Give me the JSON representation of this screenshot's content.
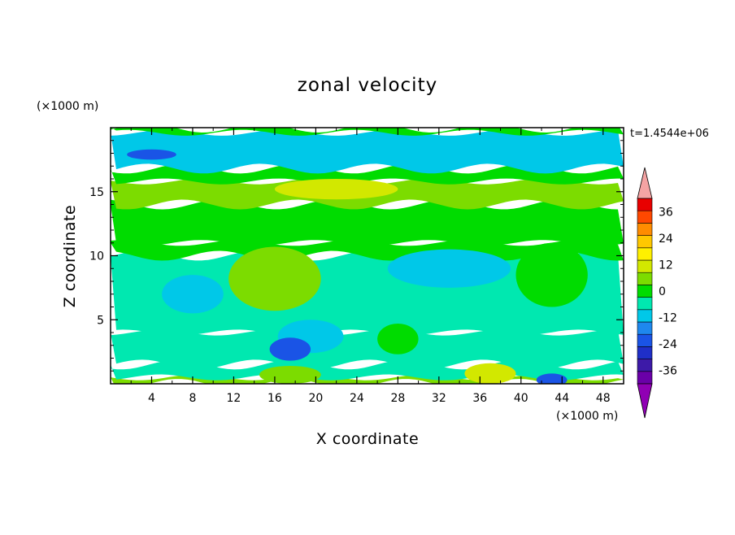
{
  "chart_data": {
    "type": "heatmap",
    "title": "zonal velocity",
    "xlabel": "X coordinate",
    "ylabel": "Z coordinate",
    "x_unit": "(×1000 m)",
    "y_unit": "(×1000 m)",
    "time_label": "t=1.4544e+06",
    "xlim": [
      0,
      50
    ],
    "ylim": [
      0,
      20
    ],
    "x_ticks": [
      4,
      8,
      12,
      16,
      20,
      24,
      28,
      32,
      36,
      40,
      44,
      48
    ],
    "x_tick_labels": [
      "4",
      "8",
      "12",
      "16",
      "20",
      "24",
      "28",
      "32",
      "36",
      "40",
      "44",
      "48"
    ],
    "y_ticks": [
      5,
      10,
      15
    ],
    "y_tick_labels": [
      "5",
      "10",
      "15"
    ],
    "colorbar": {
      "levels": [
        -42,
        -36,
        -30,
        -24,
        -18,
        -12,
        -6,
        0,
        6,
        12,
        18,
        24,
        30,
        36,
        42
      ],
      "tick_values": [
        -36,
        -24,
        -12,
        0,
        12,
        24,
        36
      ],
      "tick_labels": [
        "-36",
        "-24",
        "-12",
        "0",
        "12",
        "24",
        "36"
      ],
      "colors": [
        "#6a00a8",
        "#3d1aa8",
        "#1f2fc8",
        "#1a54e6",
        "#1e88ee",
        "#00c8e8",
        "#00e8b0",
        "#00dc00",
        "#7cdc00",
        "#d2e800",
        "#fff000",
        "#ffc800",
        "#ff8c00",
        "#ff4800",
        "#e80000"
      ],
      "under_color": "#9000b4",
      "over_color": "#f4a3a3"
    },
    "field_bands": [
      {
        "z": [
          0.0,
          0.5
        ],
        "value": 6
      },
      {
        "z": [
          0.5,
          1.5
        ],
        "value": -4
      },
      {
        "z": [
          1.5,
          4.0
        ],
        "value": -2
      },
      {
        "z": [
          4.0,
          10.0
        ],
        "value": -5
      },
      {
        "z": [
          10.0,
          11.0
        ],
        "value": 1
      },
      {
        "z": [
          11.0,
          14.0
        ],
        "value": 4
      },
      {
        "z": [
          14.0,
          15.8
        ],
        "value": 10
      },
      {
        "z": [
          15.8,
          16.8
        ],
        "value": 3
      },
      {
        "z": [
          16.8,
          19.6
        ],
        "value": -9
      },
      {
        "z": [
          19.6,
          20.0
        ],
        "value": 0
      }
    ],
    "field_features": [
      {
        "x": 16,
        "z": 8.2,
        "rx": 4.5,
        "rz": 2.5,
        "value": 7
      },
      {
        "x": 33,
        "z": 9.0,
        "rx": 6,
        "rz": 1.5,
        "value": -8
      },
      {
        "x": 43,
        "z": 8.5,
        "rx": 3.5,
        "rz": 2.5,
        "value": 4
      },
      {
        "x": 28,
        "z": 3.5,
        "rx": 2,
        "rz": 1.2,
        "value": 5
      },
      {
        "x": 19.5,
        "z": 3.7,
        "rx": 3.2,
        "rz": 1.3,
        "value": -10
      },
      {
        "x": 17.5,
        "z": 2.7,
        "rx": 2.0,
        "rz": 0.9,
        "value": -20
      },
      {
        "x": 4,
        "z": 17.9,
        "rx": 2.4,
        "rz": 0.4,
        "value": -20
      },
      {
        "x": 43,
        "z": 0.3,
        "rx": 1.5,
        "rz": 0.5,
        "value": -22
      },
      {
        "x": 37,
        "z": 0.8,
        "rx": 2.5,
        "rz": 0.8,
        "value": 13
      },
      {
        "x": 17.5,
        "z": 0.7,
        "rx": 3.0,
        "rz": 0.7,
        "value": 8
      },
      {
        "x": 22,
        "z": 15.2,
        "rx": 6,
        "rz": 0.8,
        "value": 15
      },
      {
        "x": 8,
        "z": 7,
        "rx": 3,
        "rz": 1.5,
        "value": -10
      }
    ]
  }
}
